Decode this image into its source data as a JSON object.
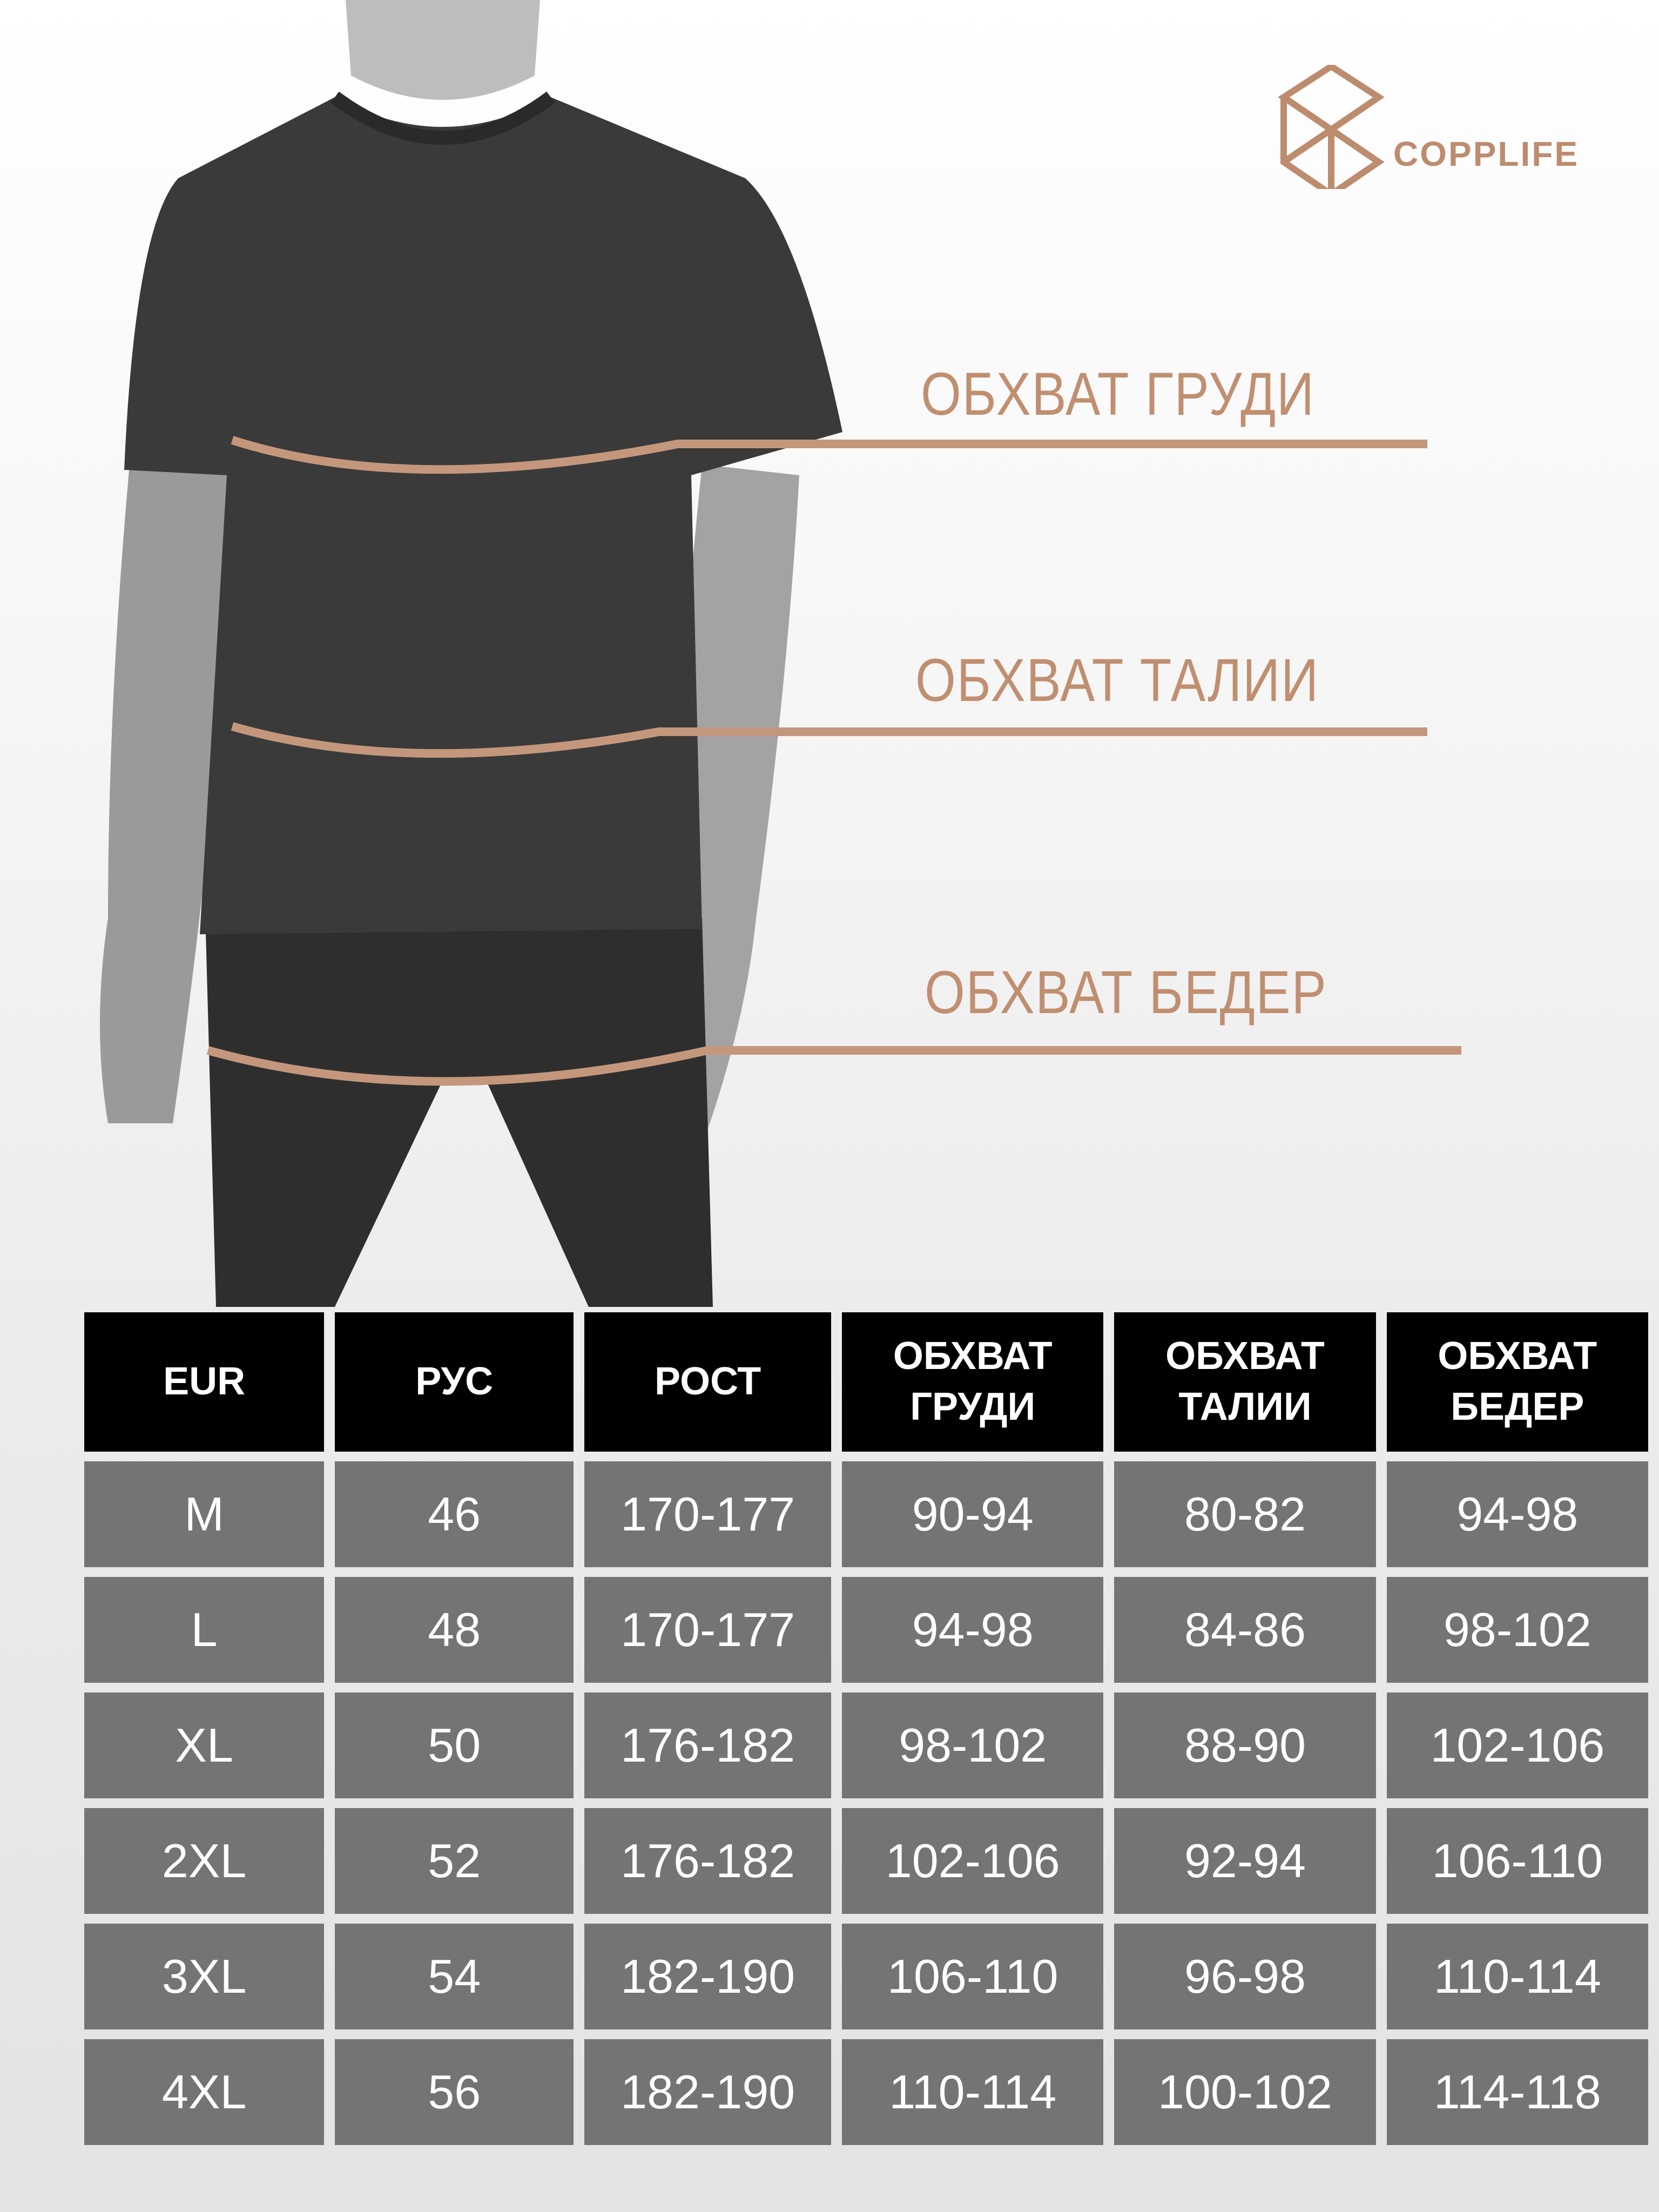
{
  "brand": {
    "name": "COPPLIFE",
    "color": "#bd8c6e"
  },
  "measurement_labels": {
    "chest": "ОБХВАТ ГРУДИ",
    "waist": "ОБХВАТ ТАЛИИ",
    "hips": "ОБХВАТ БЕДЕР",
    "color": "#c4977c"
  },
  "table": {
    "headers": [
      "EUR",
      "РУС",
      "РОСТ",
      "ОБХВАТ ГРУДИ",
      "ОБХВАТ ТАЛИИ",
      "ОБХВАТ БЕДЕР"
    ],
    "rows": [
      [
        "M",
        "46",
        "170-177",
        "90-94",
        "80-82",
        "94-98"
      ],
      [
        "L",
        "48",
        "170-177",
        "94-98",
        "84-86",
        "98-102"
      ],
      [
        "XL",
        "50",
        "176-182",
        "98-102",
        "88-90",
        "102-106"
      ],
      [
        "2XL",
        "52",
        "176-182",
        "102-106",
        "92-94",
        "106-110"
      ],
      [
        "3XL",
        "54",
        "182-190",
        "106-110",
        "96-98",
        "110-114"
      ],
      [
        "4XL",
        "56",
        "182-190",
        "110-114",
        "100-102",
        "114-118"
      ]
    ]
  }
}
